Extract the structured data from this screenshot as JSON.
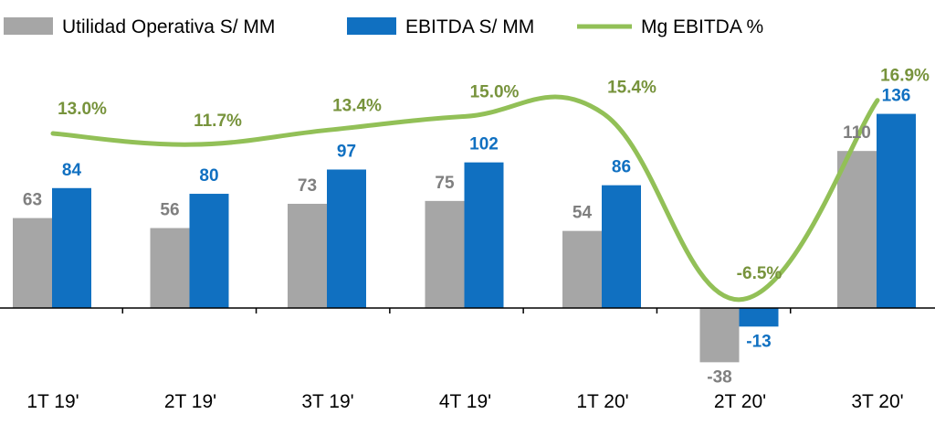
{
  "chart_data": {
    "type": "bar",
    "categories": [
      "1T 19'",
      "2T 19'",
      "3T 19'",
      "4T 19'",
      "1T 20'",
      "2T 20'",
      "3T 20'"
    ],
    "series": [
      {
        "name": "Utilidad Operativa S/ MM",
        "kind": "bar",
        "color": "#a6a6a6",
        "label_color": "#7f7f7f",
        "values": [
          63,
          56,
          73,
          75,
          54,
          -38,
          110
        ]
      },
      {
        "name": "EBITDA S/ MM",
        "kind": "bar",
        "color": "#1070c1",
        "label_color": "#1070c1",
        "values": [
          84,
          80,
          97,
          102,
          86,
          -13,
          136
        ]
      },
      {
        "name": "Mg EBITDA %",
        "kind": "line",
        "color": "#92c057",
        "label_color": "#77933c",
        "values": [
          13.0,
          11.7,
          13.4,
          15.0,
          15.4,
          -6.5,
          16.9
        ],
        "labels": [
          "13.0%",
          "11.7%",
          "13.4%",
          "15.0%",
          "15.4%",
          "-6.5%",
          "16.9%"
        ]
      }
    ],
    "legend": "top",
    "grid": false,
    "title": "",
    "xlabel": "",
    "ylabel": ""
  }
}
